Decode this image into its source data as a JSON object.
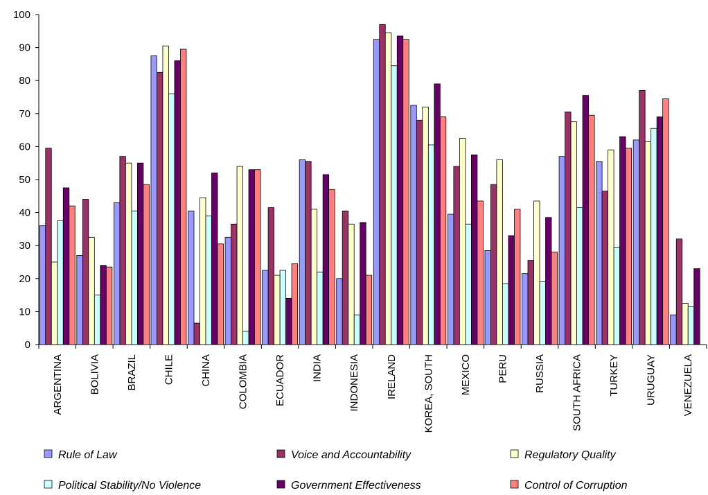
{
  "chart_data": {
    "type": "bar",
    "title": "",
    "xlabel": "",
    "ylabel": "",
    "ylim": [
      0,
      100
    ],
    "yticks": [
      0,
      10,
      20,
      30,
      40,
      50,
      60,
      70,
      80,
      90,
      100
    ],
    "grid": false,
    "legend_position": "bottom",
    "categories": [
      "ARGENTINA",
      "BOLIVIA",
      "BRAZIL",
      "CHILE",
      "CHINA",
      "COLOMBIA",
      "ECUADOR",
      "INDIA",
      "INDONESIA",
      "IRELAND",
      "KOREA, SOUTH",
      "MEXICO",
      "PERU",
      "RUSSIA",
      "SOUTH AFRICA",
      "TURKEY",
      "URUGUAY",
      "VENEZUELA"
    ],
    "series": [
      {
        "name": "Rule of Law",
        "color": "#9999ff",
        "values": [
          36,
          27,
          43,
          87.5,
          40.5,
          32.5,
          22.5,
          56,
          20,
          92.5,
          72.5,
          39.5,
          28.5,
          21.5,
          57,
          55.5,
          62,
          9
        ]
      },
      {
        "name": "Voice and Accountability",
        "color": "#993366",
        "values": [
          59.5,
          44,
          57,
          82.5,
          6.5,
          36.5,
          41.5,
          55.5,
          40.5,
          97,
          68,
          54,
          48.5,
          25.5,
          70.5,
          46.5,
          77,
          32
        ]
      },
      {
        "name": "Regulatory Quality",
        "color": "#ffffcc",
        "values": [
          25,
          32.5,
          55,
          90.5,
          44.5,
          54,
          21,
          41,
          36.5,
          94.5,
          72,
          62.5,
          56,
          43.5,
          67.5,
          59,
          61.5,
          12.5
        ]
      },
      {
        "name": "Political Stability/No Violence",
        "color": "#ccffff",
        "values": [
          37.5,
          15,
          40.5,
          76,
          39,
          4,
          22.5,
          22,
          9,
          84.5,
          60.5,
          36.5,
          18.5,
          19,
          41.5,
          29.5,
          65.5,
          11.5
        ]
      },
      {
        "name": "Government Effectiveness",
        "color": "#660066",
        "values": [
          47.5,
          24,
          55,
          86,
          52,
          53,
          14,
          51.5,
          37,
          93.5,
          79,
          57.5,
          33,
          38.5,
          75.5,
          63,
          69,
          23
        ]
      },
      {
        "name": "Control of Corruption",
        "color": "#ff8080",
        "values": [
          42,
          23.5,
          48.5,
          89.5,
          30.5,
          53,
          24.5,
          47,
          21,
          92.5,
          69,
          43.5,
          41,
          28,
          69.5,
          59.5,
          74.5,
          0
        ]
      }
    ]
  }
}
